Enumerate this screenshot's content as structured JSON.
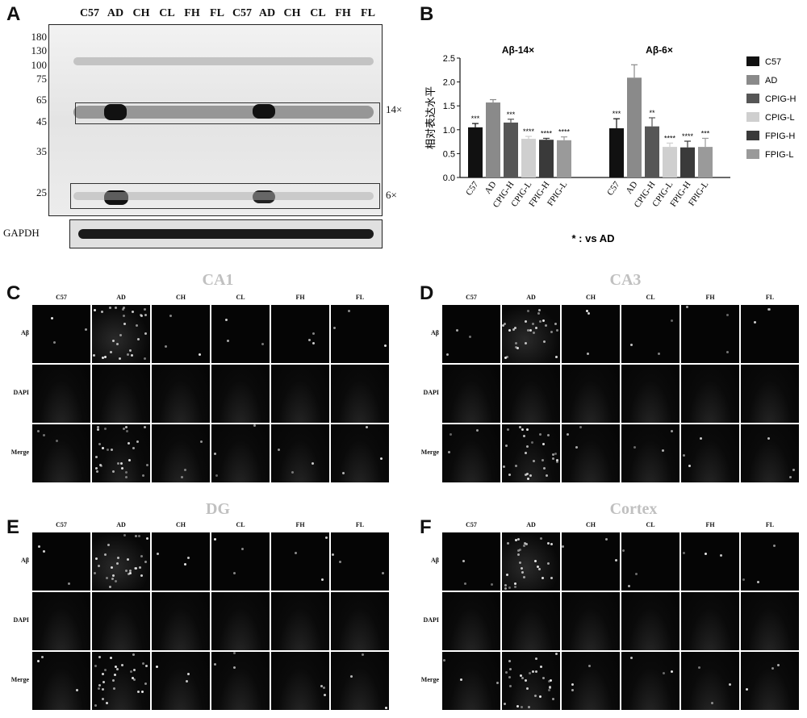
{
  "panels": {
    "a": "A",
    "b": "B",
    "c": "C",
    "d": "D",
    "e": "E",
    "f": "F"
  },
  "blot": {
    "lanes": [
      "C57",
      "AD",
      "CH",
      "CL",
      "FH",
      "FL",
      "C57",
      "AD",
      "CH",
      "CL",
      "FH",
      "FL"
    ],
    "markers": [
      "180",
      "130",
      "100",
      "75",
      "65",
      "45",
      "35",
      "25"
    ],
    "box_labels": [
      "14×",
      "6×"
    ],
    "loading_control": "GAPDH"
  },
  "chart_data": {
    "type": "bar",
    "ylabel": "相对表达水平",
    "ylim": [
      0,
      2.5
    ],
    "yticks": [
      "0.0",
      "0.5",
      "1.0",
      "1.5",
      "2.0",
      "2.5"
    ],
    "groups": [
      {
        "title": "Aβ-14×",
        "categories": [
          "C57",
          "AD",
          "CPIG-H",
          "CPIG-L",
          "FPIG-H",
          "FPIG-L"
        ],
        "values": [
          1.05,
          1.57,
          1.15,
          0.81,
          0.79,
          0.78
        ],
        "errors": [
          0.08,
          0.06,
          0.07,
          0.05,
          0.03,
          0.07
        ],
        "sig": [
          "***",
          "",
          "***",
          "****",
          "****",
          "****"
        ]
      },
      {
        "title": "Aβ-6×",
        "categories": [
          "C57",
          "AD",
          "CPIG-H",
          "CPIG-L",
          "FPIG-H",
          "FPIG-L"
        ],
        "values": [
          1.03,
          2.09,
          1.07,
          0.64,
          0.63,
          0.64
        ],
        "errors": [
          0.2,
          0.27,
          0.18,
          0.08,
          0.13,
          0.18
        ],
        "sig": [
          "***",
          "",
          "**",
          "****",
          "****",
          "***"
        ]
      }
    ],
    "legend": [
      "C57",
      "AD",
      "CPIG-H",
      "CPIG-L",
      "FPIG-H",
      "FPIG-L"
    ],
    "colors": [
      "#111111",
      "#8a8a8a",
      "#565656",
      "#cfcfcf",
      "#3a3a3a",
      "#9a9a9a"
    ],
    "note": "* : vs AD"
  },
  "micrographs": {
    "columns": [
      "C57",
      "AD",
      "CH",
      "CL",
      "FH",
      "FL"
    ],
    "rows": [
      "Aβ",
      "DAPI",
      "Merge"
    ],
    "titles": {
      "c": "CA1",
      "d": "CA3",
      "e": "DG",
      "f": "Cortex"
    }
  }
}
